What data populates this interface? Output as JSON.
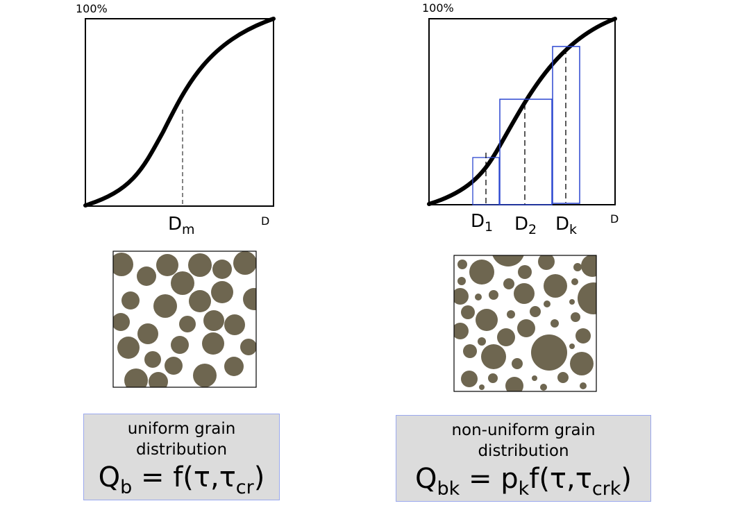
{
  "left_panel": {
    "y_top_label": "100%",
    "x_axis_label": "D",
    "median_label": {
      "main": "D",
      "sub": "m"
    },
    "description_line1": "uniform grain",
    "description_line2": "distribution",
    "formula": {
      "lhs_main": "Q",
      "lhs_sub": "b",
      "eq": " = f(τ,τ",
      "tau_sub": "cr",
      "close": ")"
    }
  },
  "right_panel": {
    "y_top_label": "100%",
    "x_axis_label": "D",
    "class_labels": [
      {
        "main": "D",
        "sub": "1"
      },
      {
        "main": "D",
        "sub": "2"
      },
      {
        "main": "D",
        "sub": "k"
      }
    ],
    "description_line1": "non-uniform grain",
    "description_line2": "distribution",
    "formula": {
      "lhs_main": "Q",
      "lhs_sub": "bk",
      "eq": " =  p",
      "p_sub": "k",
      "f": "f(τ,τ",
      "tau_sub": "crk",
      "close": ")"
    }
  },
  "colors": {
    "grain": "#6e6650",
    "curve": "#000000",
    "class_box": "#2b46d0",
    "info_bg": "#dcdcdc",
    "info_border": "#9aa8ee"
  }
}
